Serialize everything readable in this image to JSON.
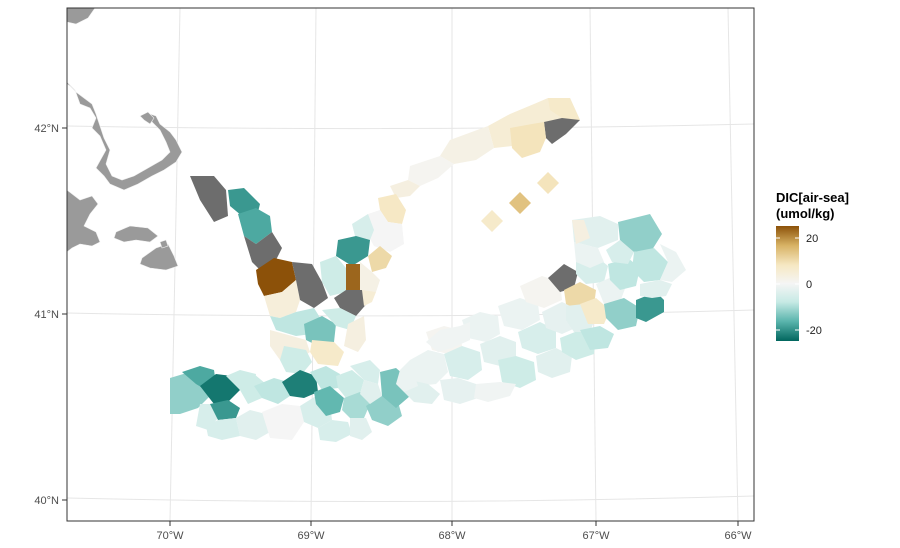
{
  "map": {
    "lon_labels": [
      "70°W",
      "69°W",
      "68°W",
      "67°W",
      "66°W"
    ],
    "lat_labels": [
      "42°N",
      "41°N",
      "40°N"
    ],
    "land_color": "#9a9a9a",
    "no_data_color": "#6d6d6d"
  },
  "legend": {
    "title_line1": "DIC[air-sea]",
    "title_line2": "(umol/kg)",
    "ticks": [
      "20",
      "0",
      "-20"
    ],
    "tick_values": [
      20,
      0,
      -20
    ],
    "range": [
      -28,
      28
    ],
    "colors": [
      "#8c5109",
      "#d8b365",
      "#f6e8c3",
      "#f5f5f5",
      "#c7eae5",
      "#5ab4ac",
      "#01665e"
    ]
  },
  "chart_data": {
    "type": "heatmap",
    "title": "",
    "xlabel": "",
    "ylabel": "",
    "x_ticks": [
      "70°W",
      "69°W",
      "68°W",
      "67°W",
      "66°W"
    ],
    "y_ticks": [
      "42°N",
      "41°N",
      "40°N"
    ],
    "value_label": "DIC[air-sea] (umol/kg)",
    "color_range": [
      -28,
      28
    ],
    "cells": [
      {
        "lon": -69.7,
        "lat": 40.6,
        "value": -22
      },
      {
        "lon": -69.5,
        "lat": 40.55,
        "value": -20
      },
      {
        "lon": -69.1,
        "lat": 40.6,
        "value": -22
      },
      {
        "lon": -68.9,
        "lat": 40.5,
        "value": -15
      },
      {
        "lon": -68.4,
        "lat": 40.55,
        "value": -14
      },
      {
        "lon": -68.7,
        "lat": 41.35,
        "value": -22
      },
      {
        "lon": -69.4,
        "lat": 41.55,
        "value": -20
      },
      {
        "lon": -68.7,
        "lat": 41.1,
        "value": 18
      },
      {
        "lon": -69.2,
        "lat": 41.2,
        "value": 24
      },
      {
        "lon": -67.5,
        "lat": 41.6,
        "value": 14
      },
      {
        "lon": -67.3,
        "lat": 41.75,
        "value": 8
      },
      {
        "lon": -67.1,
        "lat": 41.0,
        "value": 10
      },
      {
        "lon": -66.6,
        "lat": 41.0,
        "value": -16
      },
      {
        "lon": -66.7,
        "lat": 41.45,
        "value": -14
      },
      {
        "lon": -67.4,
        "lat": 42.1,
        "value": 6
      }
    ]
  }
}
